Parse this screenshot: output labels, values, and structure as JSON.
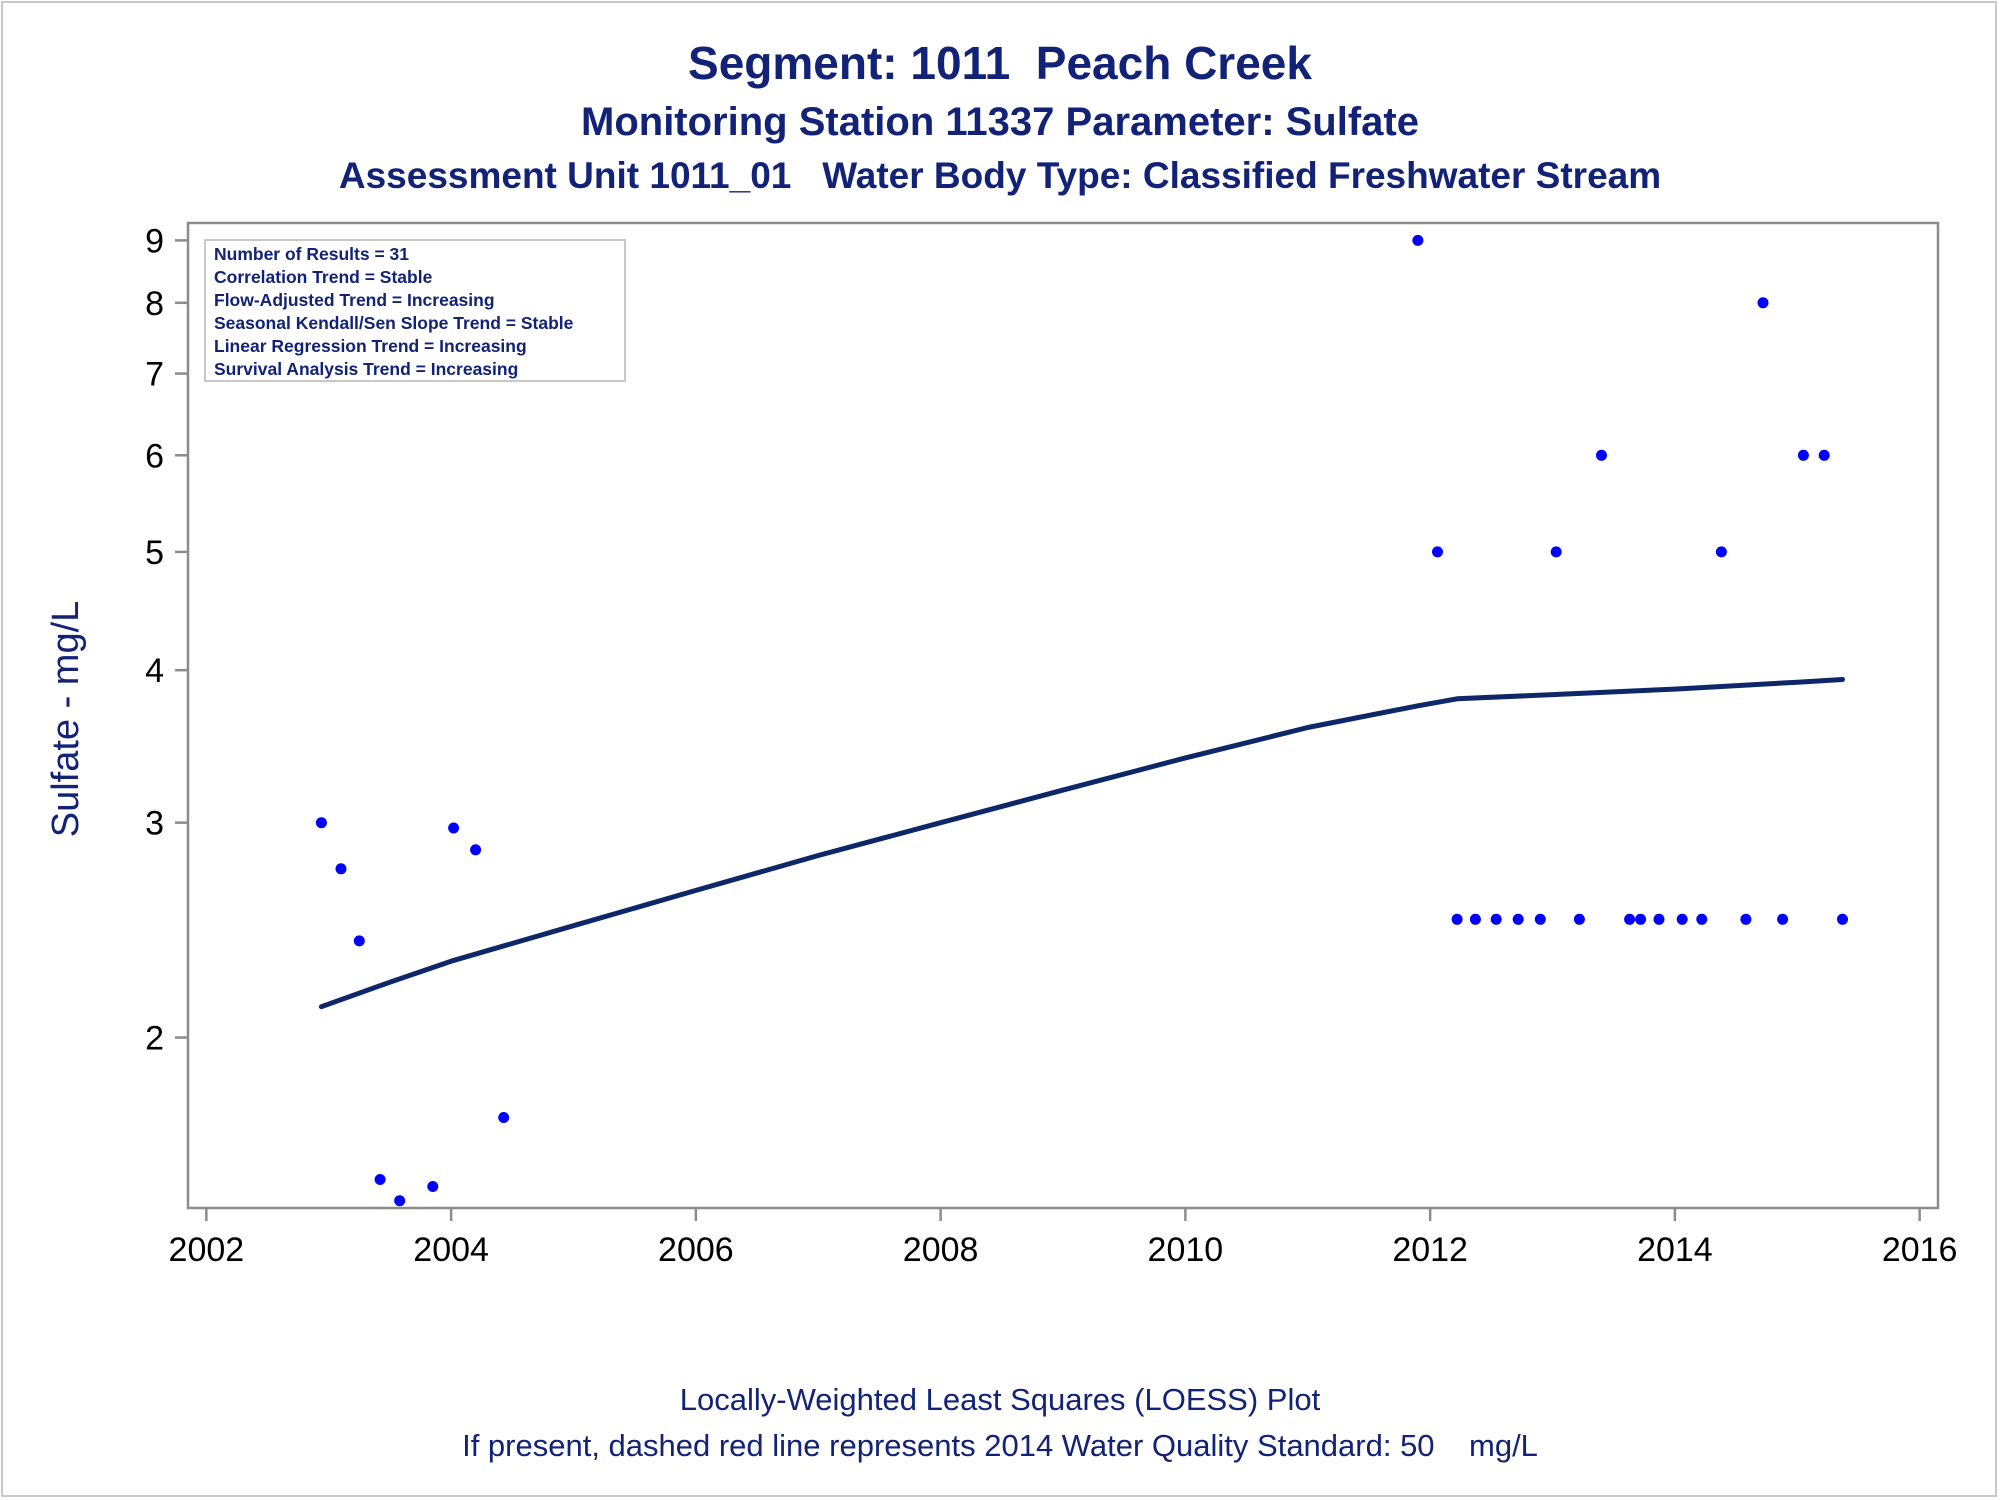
{
  "colors": {
    "title": "#112277",
    "points": "#0000ff",
    "trend_line": "#0d2769",
    "axis": "#8c8c8c",
    "frame": "#c8c8c8"
  },
  "chart_data": {
    "type": "scatter",
    "title": "Segment: 1011  Peach Creek",
    "subtitle": "Monitoring Station 11337 Parameter: Sulfate",
    "subtitle2": "Assessment Unit 1011_01   Water Body Type: Classified Freshwater Stream",
    "xlabel": "",
    "ylabel": "Sulfate - mg/L",
    "yscale": "log",
    "xlim": [
      2001.85,
      2016.15
    ],
    "ylim": [
      1.45,
      9.3
    ],
    "xticks": [
      2002,
      2004,
      2006,
      2008,
      2010,
      2012,
      2014,
      2016
    ],
    "yticks": [
      2,
      3,
      4,
      5,
      6,
      7,
      8,
      9
    ],
    "grid": false,
    "stats_box": {
      "placement": "top-left",
      "lines": [
        "Number of Results = 31",
        "Correlation Trend = Stable",
        "Flow-Adjusted Trend = Increasing",
        "Seasonal Kendall/Sen Slope Trend = Stable",
        "Linear Regression Trend = Increasing",
        "Survival Analysis Trend = Increasing"
      ]
    },
    "footnotes": [
      "Locally-Weighted Least Squares (LOESS) Plot",
      "If present, dashed red line represents 2014 Water Quality Standard: 50    mg/L"
    ],
    "series": [
      {
        "kind": "scatter",
        "points": [
          [
            2002.94,
            3.0
          ],
          [
            2003.1,
            2.75
          ],
          [
            2003.25,
            2.4
          ],
          [
            2003.42,
            1.53
          ],
          [
            2003.58,
            1.47
          ],
          [
            2003.85,
            1.51
          ],
          [
            2004.02,
            2.97
          ],
          [
            2004.2,
            2.85
          ],
          [
            2004.43,
            1.72
          ],
          [
            2011.9,
            9.0
          ],
          [
            2012.06,
            5.0
          ],
          [
            2012.22,
            2.5
          ],
          [
            2012.37,
            2.5
          ],
          [
            2012.54,
            2.5
          ],
          [
            2012.72,
            2.5
          ],
          [
            2012.9,
            2.5
          ],
          [
            2013.03,
            5.0
          ],
          [
            2013.22,
            2.5
          ],
          [
            2013.4,
            6.0
          ],
          [
            2013.63,
            2.5
          ],
          [
            2013.72,
            2.5
          ],
          [
            2013.87,
            2.5
          ],
          [
            2014.06,
            2.5
          ],
          [
            2014.22,
            2.5
          ],
          [
            2014.38,
            5.0
          ],
          [
            2014.58,
            2.5
          ],
          [
            2014.72,
            8.0
          ],
          [
            2014.88,
            2.5
          ],
          [
            2015.05,
            6.0
          ],
          [
            2015.22,
            6.0
          ],
          [
            2015.37,
            2.5
          ]
        ]
      },
      {
        "kind": "line",
        "points": [
          [
            2002.94,
            2.12
          ],
          [
            2003.5,
            2.22
          ],
          [
            2004.0,
            2.31
          ],
          [
            2005.0,
            2.47
          ],
          [
            2006.0,
            2.64
          ],
          [
            2007.0,
            2.82
          ],
          [
            2008.0,
            3.0
          ],
          [
            2009.0,
            3.19
          ],
          [
            2010.0,
            3.39
          ],
          [
            2011.0,
            3.59
          ],
          [
            2011.9,
            3.74
          ],
          [
            2012.22,
            3.79
          ],
          [
            2013.0,
            3.82
          ],
          [
            2014.0,
            3.86
          ],
          [
            2015.0,
            3.91
          ],
          [
            2015.37,
            3.93
          ]
        ]
      }
    ]
  }
}
